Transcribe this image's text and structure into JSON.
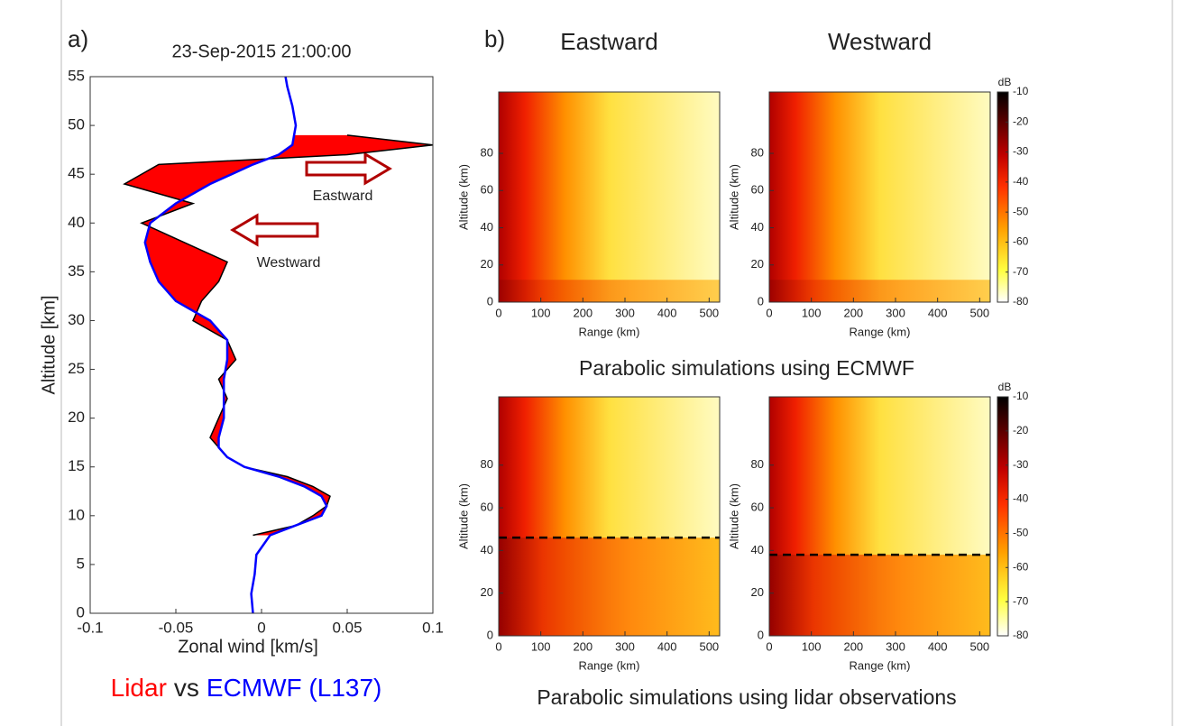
{
  "panel_labels": [
    "a)",
    "b)"
  ],
  "captions": [
    "Parabolic simulations using ECMWF",
    "Parabolic simulations using lidar observations"
  ],
  "chart_data": [
    {
      "type": "line",
      "title": "23-Sep-2015 21:00:00",
      "xlabel": "Zonal wind [km/s]",
      "ylabel": "Altitude [km]",
      "xlim": [
        -0.1,
        0.1
      ],
      "xticks": [
        -0.1,
        -0.05,
        0,
        0.05,
        0.1
      ],
      "ylim": [
        0,
        55
      ],
      "yticks": [
        0,
        5,
        10,
        15,
        20,
        25,
        30,
        35,
        40,
        45,
        50,
        55
      ],
      "y": [
        0,
        2,
        4,
        6,
        8,
        9,
        10,
        11,
        12,
        13,
        14,
        15,
        16,
        17,
        18,
        20,
        22,
        24,
        26,
        28,
        30,
        32,
        34,
        36,
        38,
        40,
        42,
        44,
        46,
        47,
        48,
        49,
        50,
        52,
        54,
        55
      ],
      "series": [
        {
          "name": "Lidar",
          "color": "#ff0000",
          "values": [
            null,
            null,
            null,
            null,
            -0.005,
            0.02,
            0.03,
            0.038,
            0.04,
            0.03,
            0.015,
            -0.01,
            -0.02,
            -0.025,
            -0.03,
            -0.025,
            -0.02,
            -0.025,
            -0.015,
            -0.02,
            -0.04,
            -0.035,
            -0.025,
            -0.02,
            -0.045,
            -0.07,
            -0.04,
            -0.08,
            -0.06,
            0.05,
            0.1,
            0.05,
            null,
            null,
            null,
            null
          ]
        },
        {
          "name": "ECMWF (L137)",
          "color": "#0000ff",
          "values": [
            -0.005,
            -0.006,
            -0.004,
            -0.003,
            0.005,
            0.02,
            0.035,
            0.038,
            0.035,
            0.025,
            0.01,
            -0.01,
            -0.02,
            -0.025,
            -0.025,
            -0.022,
            -0.022,
            -0.022,
            -0.02,
            -0.02,
            -0.03,
            -0.05,
            -0.06,
            -0.065,
            -0.068,
            -0.065,
            -0.05,
            -0.03,
            -0.005,
            0.01,
            0.018,
            0.019,
            0.02,
            0.018,
            0.015,
            0.014
          ]
        }
      ],
      "annotations": [
        "Eastward",
        "Westward"
      ],
      "caption": [
        "Lidar",
        "vs",
        "ECMWF (L137)"
      ]
    },
    {
      "type": "heatmap",
      "title": "Eastward",
      "xlabel": "Range (km)",
      "ylabel": "Altitude (km)",
      "xlim": [
        0,
        525
      ],
      "xticks": [
        0,
        100,
        200,
        300,
        400,
        500
      ],
      "ylim": [
        0,
        113
      ],
      "yticks": [
        0,
        20,
        40,
        60,
        80
      ]
    },
    {
      "type": "heatmap",
      "title": "Westward",
      "xlabel": "Range (km)",
      "ylabel": "Altitude (km)",
      "xlim": [
        0,
        525
      ],
      "xticks": [
        0,
        100,
        200,
        300,
        400,
        500
      ],
      "ylim": [
        0,
        113
      ],
      "yticks": [
        0,
        20,
        40,
        60,
        80
      ],
      "colorbar": {
        "label": "dB",
        "lim": [
          -80,
          -10
        ],
        "ticks": [
          -10,
          -20,
          -30,
          -40,
          -50,
          -60,
          -70,
          -80
        ]
      }
    },
    {
      "type": "heatmap",
      "xlabel": "Range (km)",
      "ylabel": "Altitude (km)",
      "xlim": [
        0,
        525
      ],
      "xticks": [
        0,
        100,
        200,
        300,
        400,
        500
      ],
      "ylim": [
        0,
        112
      ],
      "yticks": [
        0,
        20,
        40,
        60,
        80
      ],
      "dashed_altitude": 46
    },
    {
      "type": "heatmap",
      "xlabel": "Range (km)",
      "ylabel": "Altitude (km)",
      "xlim": [
        0,
        525
      ],
      "xticks": [
        0,
        100,
        200,
        300,
        400,
        500
      ],
      "ylim": [
        0,
        112
      ],
      "yticks": [
        0,
        20,
        40,
        60,
        80
      ],
      "dashed_altitude": 38,
      "colorbar": {
        "label": "dB",
        "lim": [
          -80,
          -10
        ],
        "ticks": [
          -10,
          -20,
          -30,
          -40,
          -50,
          -60,
          -70,
          -80
        ]
      }
    }
  ]
}
